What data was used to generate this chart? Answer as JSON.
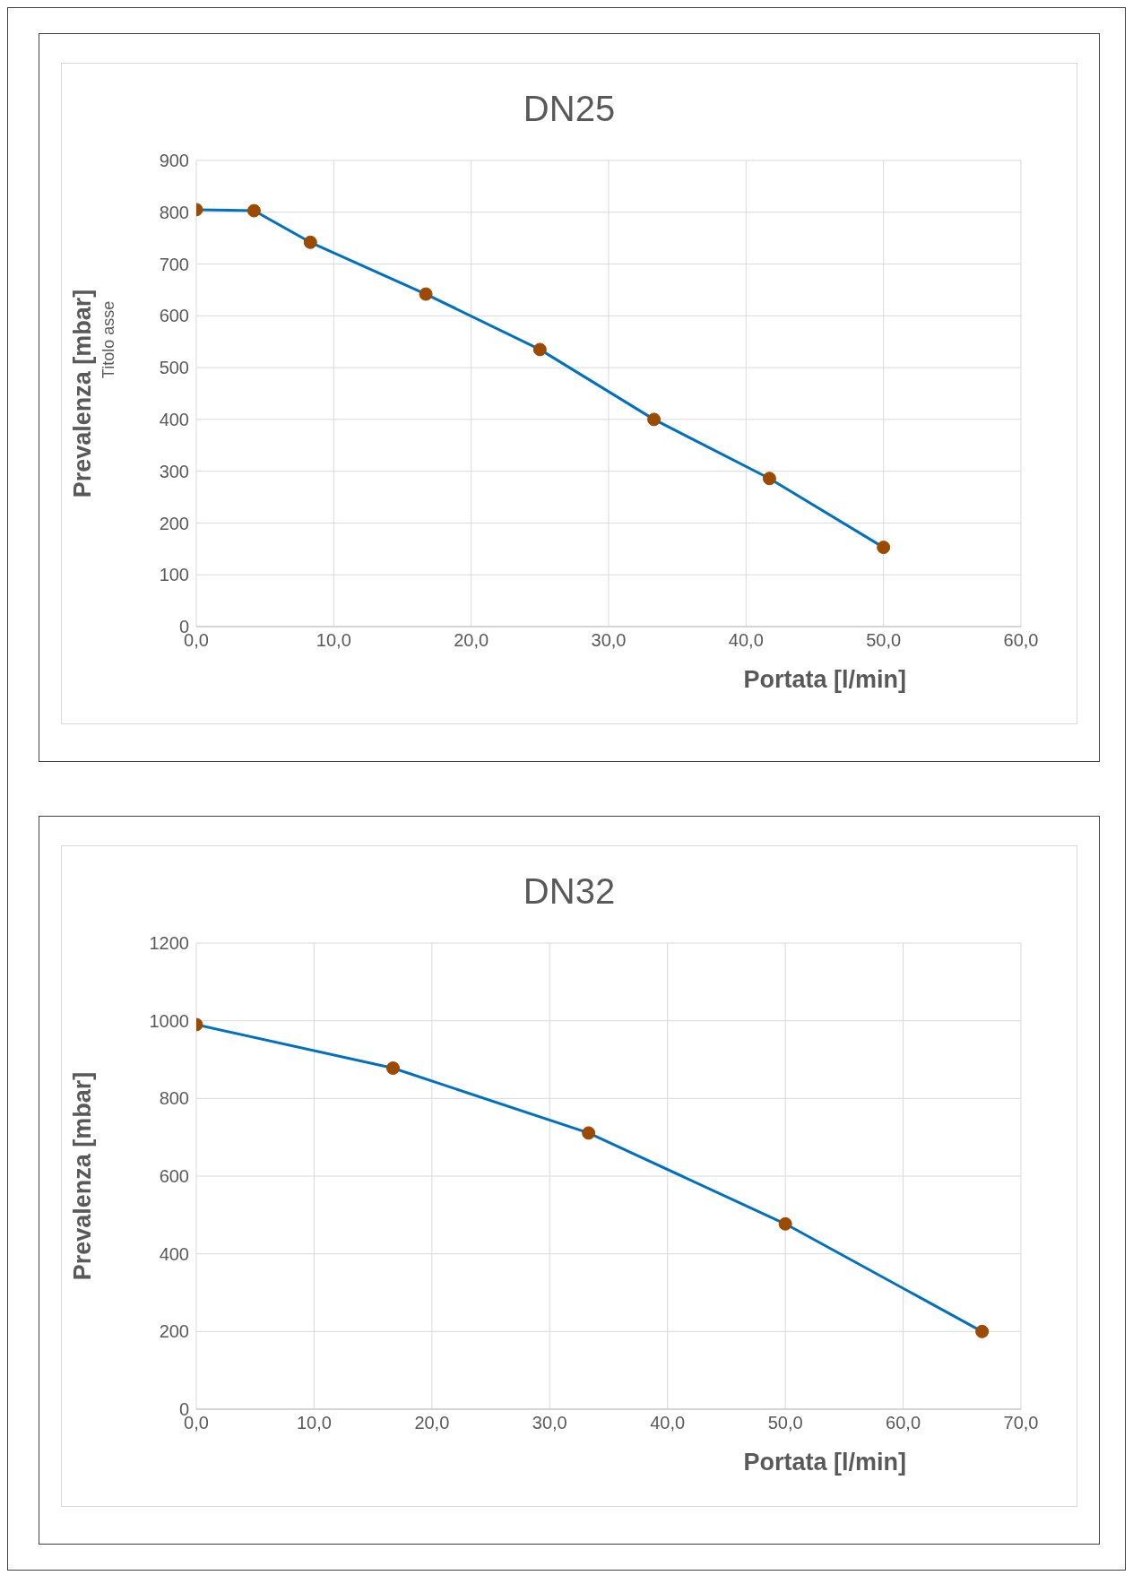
{
  "chart_data": [
    {
      "type": "line",
      "title": "DN25",
      "xlabel": "Portata [l/min]",
      "ylabel": "Prevalenza [mbar]",
      "annotations": [
        "Titolo asse"
      ],
      "x": [
        0,
        4.2,
        8.3,
        16.7,
        25,
        33.3,
        41.7,
        50
      ],
      "series": [
        {
          "color": "#0070c0",
          "colors": [
            "#9c4a00",
            "#9c4a00",
            "#9c4a00",
            "#9c4a00",
            "#9c4a00",
            "#9c4a00",
            "#9c4a00",
            "#9c4a00"
          ],
          "values": [
            805,
            803,
            742,
            642,
            535,
            400,
            286,
            153
          ]
        }
      ],
      "xlim": [
        0,
        60
      ],
      "xticks": [
        {
          "value": 0,
          "label": "0,0"
        },
        {
          "value": 10,
          "label": "10,0"
        },
        {
          "value": 20,
          "label": "20,0"
        },
        {
          "value": 30,
          "label": "30,0"
        },
        {
          "value": 40,
          "label": "40,0"
        },
        {
          "value": 50,
          "label": "50,0"
        },
        {
          "value": 60,
          "label": "60,0"
        }
      ],
      "ylim": [
        0,
        900
      ],
      "yticks": [
        0,
        100,
        200,
        300,
        400,
        500,
        600,
        700,
        800,
        900
      ],
      "grid": true,
      "marker": "circle"
    },
    {
      "type": "line",
      "title": "DN32",
      "xlabel": "Portata [l/min]",
      "ylabel": "Prevalenza [mbar]",
      "x": [
        0,
        16.7,
        33.3,
        50,
        66.7
      ],
      "series": [
        {
          "color": "#0070c0",
          "colors": [
            "#9c4a00",
            "#9c4a00",
            "#9c4a00",
            "#9c4a00",
            "#9c4a00"
          ],
          "values": [
            990,
            878,
            711,
            477,
            200
          ]
        }
      ],
      "xlim": [
        0,
        70
      ],
      "xticks": [
        {
          "value": 0,
          "label": "0,0"
        },
        {
          "value": 10,
          "label": "10,0"
        },
        {
          "value": 20,
          "label": "20,0"
        },
        {
          "value": 30,
          "label": "30,0"
        },
        {
          "value": 40,
          "label": "40,0"
        },
        {
          "value": 50,
          "label": "50,0"
        },
        {
          "value": 60,
          "label": "60,0"
        },
        {
          "value": 70,
          "label": "70,0"
        }
      ],
      "ylim": [
        0,
        1200
      ],
      "yticks": [
        0,
        200,
        400,
        600,
        800,
        1000,
        1200
      ],
      "grid": true,
      "marker": "circle"
    }
  ]
}
